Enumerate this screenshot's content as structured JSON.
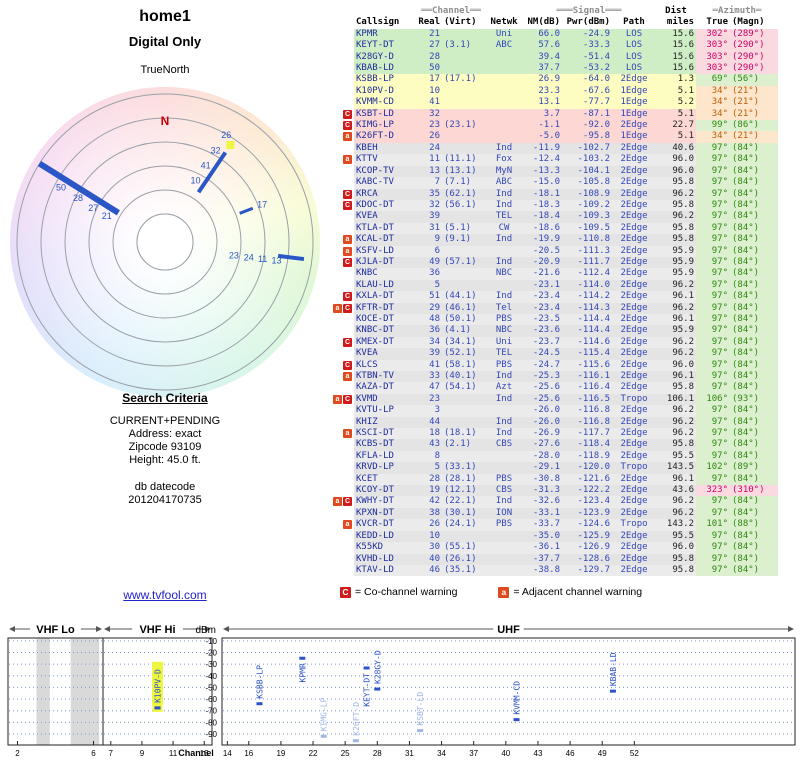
{
  "page": {
    "title": "home1",
    "subtitle": "Digital Only",
    "radar_caption": "TrueNorth",
    "north_label": "N"
  },
  "criteria": {
    "title": "Search Criteria",
    "lines": [
      "CURRENT+PENDING",
      "Address: exact",
      "Zipcode 93109",
      "Height: 45.0 ft."
    ],
    "datecode_label": "db datecode",
    "datecode": "201204170735"
  },
  "link_text": "www.tvfool.com",
  "legend": {
    "co_symbol": "C",
    "co_text": "= Co-channel warning",
    "adj_symbol": "a",
    "adj_text": "= Adjacent channel warning"
  },
  "colors": {
    "accent_blue": "#2a56c6",
    "table_text": "#3347b8",
    "callsign": "#1d2c9e",
    "miles": "#222222",
    "bands": {
      "g": "#cfeec6",
      "y": "#fdfdc1",
      "p": "#fcd7d3",
      "n": "#e4e4e4",
      "n_alt": "#ebebeb"
    },
    "az": {
      "gr": {
        "fg": "#2e8a10",
        "bg": "#dcefcf"
      },
      "or": {
        "fg": "#c05c00",
        "bg": "#fee6cd"
      },
      "pk": {
        "fg": "#cc0066",
        "bg": "#fbd9e0"
      }
    },
    "badge": {
      "C": "#cf1b1b",
      "a": "#e04a1f"
    },
    "highlight": "#eef63e",
    "point": "#2b52c8",
    "dim_point": "#9fb6e4",
    "grid": "#7d96d8",
    "north": "#cc0000"
  },
  "table": {
    "group_headers": {
      "channel": "══Channel══",
      "signal": "═══Signal═══",
      "dist": "Dist",
      "azimuth": "═Azimuth═"
    },
    "col_headers": {
      "callsign": "Callsign",
      "real": "Real",
      "virt": "(Virt)",
      "netwk": "Netwk",
      "nm": "NM(dB)",
      "pwr": "Pwr(dBm)",
      "path": "Path",
      "miles": "miles",
      "true": "True",
      "magn": "(Magn)"
    },
    "row_fields": [
      "marker",
      "callsign",
      "real",
      "virt",
      "netwk",
      "nm_db",
      "pwr_dbm",
      "path",
      "dist_miles",
      "az_true",
      "az_magn",
      "band",
      "az_hue"
    ],
    "rows": [
      [
        "",
        "KPMR",
        "21",
        "",
        "Uni",
        "66.0",
        "-24.9",
        "LOS",
        "15.6",
        "302°",
        "(289°)",
        "g",
        "pk"
      ],
      [
        "",
        "KEYT-DT",
        "27",
        "(3.1)",
        "ABC",
        "57.6",
        "-33.3",
        "LOS",
        "15.6",
        "303°",
        "(290°)",
        "g",
        "pk"
      ],
      [
        "",
        "K28GY-D",
        "28",
        "",
        "",
        "39.4",
        "-51.4",
        "LOS",
        "15.6",
        "303°",
        "(290°)",
        "g",
        "pk"
      ],
      [
        "",
        "KBAB-LD",
        "50",
        "",
        "",
        "37.7",
        "-53.2",
        "LOS",
        "15.6",
        "303°",
        "(290°)",
        "g",
        "pk"
      ],
      [
        "",
        "KSBB-LP",
        "17",
        "(17.1)",
        "",
        "26.9",
        "-64.0",
        "2Edge",
        "1.3",
        "69°",
        "(56°)",
        "y",
        "gr"
      ],
      [
        "",
        "K10PV-D",
        "10",
        "",
        "",
        "23.3",
        "-67.6",
        "1Edge",
        "5.1",
        "34°",
        "(21°)",
        "y",
        "or"
      ],
      [
        "",
        "KVMM-CD",
        "41",
        "",
        "",
        "13.1",
        "-77.7",
        "1Edge",
        "5.2",
        "34°",
        "(21°)",
        "y",
        "or"
      ],
      [
        "C",
        "KSBT-LD",
        "32",
        "",
        "",
        "3.7",
        "-87.1",
        "1Edge",
        "5.1",
        "34°",
        "(21°)",
        "p",
        "or"
      ],
      [
        "C",
        "KIMG-LP",
        "23",
        "(23.1)",
        "",
        "-1.1",
        "-92.0",
        "2Edge",
        "22.7",
        "99°",
        "(86°)",
        "p",
        "gr"
      ],
      [
        "a",
        "K26FT-D",
        "26",
        "",
        "",
        "-5.0",
        "-95.8",
        "1Edge",
        "5.1",
        "34°",
        "(21°)",
        "p",
        "or"
      ],
      [
        "",
        "KBEH",
        "24",
        "",
        "Ind",
        "-11.9",
        "-102.7",
        "2Edge",
        "40.6",
        "97°",
        "(84°)",
        "n",
        "gr"
      ],
      [
        "a",
        "KTTV",
        "11",
        "(11.1)",
        "Fox",
        "-12.4",
        "-103.2",
        "2Edge",
        "96.0",
        "97°",
        "(84°)",
        "n",
        "gr"
      ],
      [
        "",
        "KCOP-TV",
        "13",
        "(13.1)",
        "MyN",
        "-13.3",
        "-104.1",
        "2Edge",
        "96.0",
        "97°",
        "(84°)",
        "n",
        "gr"
      ],
      [
        "",
        "KABC-TV",
        "7",
        "(7.1)",
        "ABC",
        "-15.0",
        "-105.8",
        "2Edge",
        "95.8",
        "97°",
        "(84°)",
        "n",
        "gr"
      ],
      [
        "C",
        "KRCA",
        "35",
        "(62.1)",
        "Ind",
        "-18.1",
        "-108.9",
        "2Edge",
        "96.2",
        "97°",
        "(84°)",
        "n",
        "gr"
      ],
      [
        "C",
        "KDOC-DT",
        "32",
        "(56.1)",
        "Ind",
        "-18.3",
        "-109.2",
        "2Edge",
        "95.8",
        "97°",
        "(84°)",
        "n",
        "gr"
      ],
      [
        "",
        "KVEA",
        "39",
        "",
        "TEL",
        "-18.4",
        "-109.3",
        "2Edge",
        "96.2",
        "97°",
        "(84°)",
        "n",
        "gr"
      ],
      [
        "",
        "KTLA-DT",
        "31",
        "(5.1)",
        "CW",
        "-18.6",
        "-109.5",
        "2Edge",
        "95.8",
        "97°",
        "(84°)",
        "n",
        "gr"
      ],
      [
        "a",
        "KCAL-DT",
        "9",
        "(9.1)",
        "Ind",
        "-19.9",
        "-110.8",
        "2Edge",
        "95.8",
        "97°",
        "(84°)",
        "n",
        "gr"
      ],
      [
        "a",
        "KSFV-LD",
        "6",
        "",
        "",
        "-20.5",
        "-111.3",
        "2Edge",
        "95.9",
        "97°",
        "(84°)",
        "n",
        "gr"
      ],
      [
        "C",
        "KJLA-DT",
        "49",
        "(57.1)",
        "Ind",
        "-20.9",
        "-111.7",
        "2Edge",
        "95.9",
        "97°",
        "(84°)",
        "n",
        "gr"
      ],
      [
        "",
        "KNBC",
        "36",
        "",
        "NBC",
        "-21.6",
        "-112.4",
        "2Edge",
        "95.9",
        "97°",
        "(84°)",
        "n",
        "gr"
      ],
      [
        "",
        "KLAU-LD",
        "5",
        "",
        "",
        "-23.1",
        "-114.0",
        "2Edge",
        "96.2",
        "97°",
        "(84°)",
        "n",
        "gr"
      ],
      [
        "C",
        "KXLA-DT",
        "51",
        "(44.1)",
        "Ind",
        "-23.4",
        "-114.2",
        "2Edge",
        "96.1",
        "97°",
        "(84°)",
        "n",
        "gr"
      ],
      [
        "aC",
        "KFTR-DT",
        "29",
        "(46.1)",
        "Tel",
        "-23.4",
        "-114.3",
        "2Edge",
        "96.2",
        "97°",
        "(84°)",
        "n",
        "gr"
      ],
      [
        "",
        "KOCE-DT",
        "48",
        "(50.1)",
        "PBS",
        "-23.5",
        "-114.4",
        "2Edge",
        "96.1",
        "97°",
        "(84°)",
        "n",
        "gr"
      ],
      [
        "",
        "KNBC-DT",
        "36",
        "(4.1)",
        "NBC",
        "-23.6",
        "-114.4",
        "2Edge",
        "95.9",
        "97°",
        "(84°)",
        "n",
        "gr"
      ],
      [
        "C",
        "KMEX-DT",
        "34",
        "(34.1)",
        "Uni",
        "-23.7",
        "-114.6",
        "2Edge",
        "96.2",
        "97°",
        "(84°)",
        "n",
        "gr"
      ],
      [
        "",
        "KVEA",
        "39",
        "(52.1)",
        "TEL",
        "-24.5",
        "-115.4",
        "2Edge",
        "96.2",
        "97°",
        "(84°)",
        "n",
        "gr"
      ],
      [
        "C",
        "KLCS",
        "41",
        "(58.1)",
        "PBS",
        "-24.7",
        "-115.6",
        "2Edge",
        "96.0",
        "97°",
        "(84°)",
        "n",
        "gr"
      ],
      [
        "a",
        "KTBN-TV",
        "33",
        "(40.1)",
        "Ind",
        "-25.3",
        "-116.1",
        "2Edge",
        "96.1",
        "97°",
        "(84°)",
        "n",
        "gr"
      ],
      [
        "",
        "KAZA-DT",
        "47",
        "(54.1)",
        "Azt",
        "-25.6",
        "-116.4",
        "2Edge",
        "95.8",
        "97°",
        "(84°)",
        "n",
        "gr"
      ],
      [
        "aC",
        "KVMD",
        "23",
        "",
        "Ind",
        "-25.6",
        "-116.5",
        "Tropo",
        "106.1",
        "106°",
        "(93°)",
        "n",
        "gr"
      ],
      [
        "",
        "KVTU-LP",
        "3",
        "",
        "",
        "-26.0",
        "-116.8",
        "2Edge",
        "96.2",
        "97°",
        "(84°)",
        "n",
        "gr"
      ],
      [
        "",
        "KHIZ",
        "44",
        "",
        "Ind",
        "-26.0",
        "-116.8",
        "2Edge",
        "96.2",
        "97°",
        "(84°)",
        "n",
        "gr"
      ],
      [
        "a",
        "KSCI-DT",
        "18",
        "(18.1)",
        "Ind",
        "-26.9",
        "-117.7",
        "2Edge",
        "96.2",
        "97°",
        "(84°)",
        "n",
        "gr"
      ],
      [
        "",
        "KCBS-DT",
        "43",
        "(2.1)",
        "CBS",
        "-27.6",
        "-118.4",
        "2Edge",
        "95.8",
        "97°",
        "(84°)",
        "n",
        "gr"
      ],
      [
        "",
        "KFLA-LD",
        "8",
        "",
        "",
        "-28.0",
        "-118.9",
        "2Edge",
        "95.5",
        "97°",
        "(84°)",
        "n",
        "gr"
      ],
      [
        "",
        "KRVD-LP",
        "5",
        "(33.1)",
        "",
        "-29.1",
        "-120.0",
        "Tropo",
        "143.5",
        "102°",
        "(89°)",
        "n",
        "gr"
      ],
      [
        "",
        "KCET",
        "28",
        "(28.1)",
        "PBS",
        "-30.8",
        "-121.6",
        "2Edge",
        "96.1",
        "97°",
        "(84°)",
        "n",
        "gr"
      ],
      [
        "",
        "KCOY-DT",
        "19",
        "(12.1)",
        "CBS",
        "-31.3",
        "-122.2",
        "2Edge",
        "43.6",
        "323°",
        "(310°)",
        "n",
        "pk"
      ],
      [
        "aC",
        "KWHY-DT",
        "42",
        "(22.1)",
        "Ind",
        "-32.6",
        "-123.4",
        "2Edge",
        "96.2",
        "97°",
        "(84°)",
        "n",
        "gr"
      ],
      [
        "",
        "KPXN-DT",
        "38",
        "(30.1)",
        "ION",
        "-33.1",
        "-123.9",
        "2Edge",
        "96.2",
        "97°",
        "(84°)",
        "n",
        "gr"
      ],
      [
        "a",
        "KVCR-DT",
        "26",
        "(24.1)",
        "PBS",
        "-33.7",
        "-124.6",
        "Tropo",
        "143.2",
        "101°",
        "(88°)",
        "n",
        "gr"
      ],
      [
        "",
        "KEDD-LD",
        "10",
        "",
        "",
        "-35.0",
        "-125.9",
        "2Edge",
        "95.5",
        "97°",
        "(84°)",
        "n",
        "gr"
      ],
      [
        "",
        "K55KD",
        "30",
        "(55.1)",
        "",
        "-36.1",
        "-126.9",
        "2Edge",
        "96.0",
        "97°",
        "(84°)",
        "n",
        "gr"
      ],
      [
        "",
        "KVHD-LD",
        "40",
        "(26.1)",
        "",
        "-37.7",
        "-128.6",
        "2Edge",
        "95.8",
        "97°",
        "(84°)",
        "n",
        "gr"
      ],
      [
        "",
        "KTAV-LD",
        "46",
        "(35.1)",
        "",
        "-38.8",
        "-129.7",
        "2Edge",
        "95.8",
        "97°",
        "(84°)",
        "n",
        "gr"
      ]
    ]
  },
  "chart_data": [
    {
      "type": "scatter",
      "title": "Signal power by RF channel",
      "xlabel": "Channel",
      "ylabel": "dBm",
      "ylim": [
        -99.5,
        -7.5
      ],
      "yticks": [
        -10,
        -20,
        -30,
        -40,
        -50,
        -60,
        -70,
        -80,
        -90
      ],
      "panels": [
        {
          "name": "VHF Lo",
          "ch_range": [
            1.5,
            6.5
          ],
          "ticks": [
            2,
            6
          ],
          "shaded_bands": [
            [
              3.0,
              3.7
            ],
            [
              4.8,
              6.3
            ]
          ]
        },
        {
          "name": "VHF Hi",
          "ch_range": [
            6.5,
            13.5
          ],
          "ticks": [
            7,
            9,
            11,
            13
          ]
        },
        {
          "name": "UHF",
          "ch_range": [
            13.5,
            67
          ],
          "ticks": [
            14,
            16,
            19,
            22,
            25,
            28,
            31,
            34,
            37,
            40,
            43,
            46,
            49,
            52
          ]
        }
      ],
      "points": [
        {
          "label": "K10PV-D",
          "channel": 10,
          "dbm": -67.6,
          "highlight": true
        },
        {
          "label": "KSBB-LP",
          "channel": 17,
          "dbm": -64.0
        },
        {
          "label": "KPMR",
          "channel": 21,
          "dbm": -24.9
        },
        {
          "label": "KIMG-LP",
          "channel": 23,
          "dbm": -92.0,
          "dim": true
        },
        {
          "label": "K26FT-D",
          "channel": 26,
          "dbm": -95.8,
          "dim": true
        },
        {
          "label": "KEYT-DT",
          "channel": 27,
          "dbm": -33.3
        },
        {
          "label": "K28GY-D",
          "channel": 28,
          "dbm": -51.4
        },
        {
          "label": "KSBT-LD",
          "channel": 32,
          "dbm": -87.1,
          "dim": true
        },
        {
          "label": "KVMM-CD",
          "channel": 41,
          "dbm": -77.7
        },
        {
          "label": "KBAB-LD",
          "channel": 50,
          "dbm": -53.2
        }
      ]
    },
    {
      "type": "radar",
      "title": "Azimuth plot (TrueNorth)",
      "spokes": [
        {
          "azimuth_true": 302,
          "channel_labels": [
            "50",
            "28",
            "27",
            "21"
          ]
        },
        {
          "azimuth_true": 34,
          "channel_labels": [
            "26",
            "32",
            "41",
            "10"
          ],
          "highlight_tip": true
        },
        {
          "azimuth_true": 69,
          "channel_labels": [
            "17"
          ]
        },
        {
          "azimuth_true": 97,
          "channel_labels": [
            "13",
            "11",
            "24",
            "23"
          ]
        }
      ]
    }
  ]
}
